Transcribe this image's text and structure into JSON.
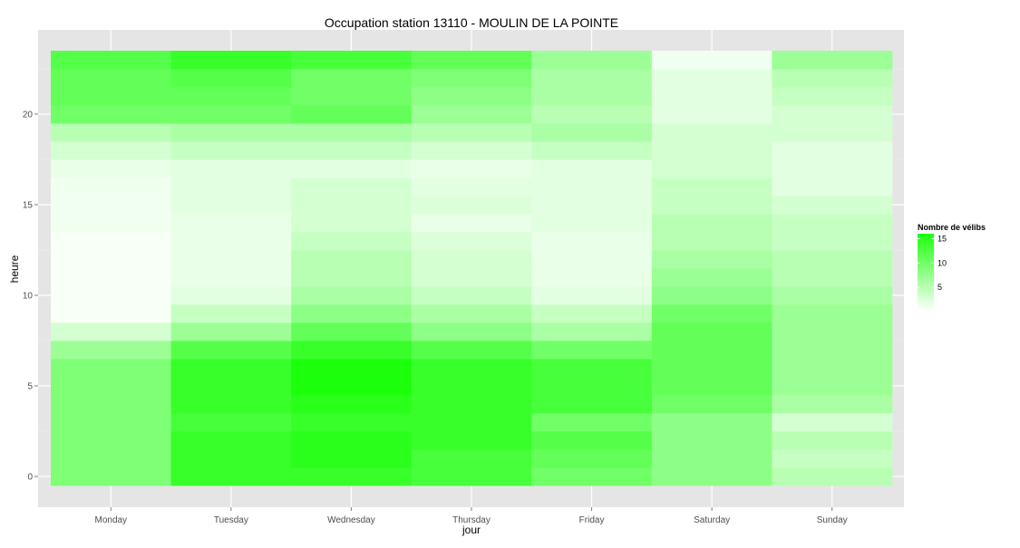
{
  "chart_data": {
    "type": "heatmap",
    "title": "Occupation station 13110 - MOULIN DE LA POINTE",
    "xlabel": "jour",
    "ylabel": "heure",
    "categories": [
      "Monday",
      "Tuesday",
      "Wednesday",
      "Thursday",
      "Friday",
      "Saturday",
      "Sunday"
    ],
    "hours": [
      0,
      1,
      2,
      3,
      4,
      5,
      6,
      7,
      8,
      9,
      10,
      11,
      12,
      13,
      14,
      15,
      16,
      17,
      18,
      19,
      20,
      21,
      22,
      23
    ],
    "y_ticks": [
      0,
      5,
      10,
      15,
      20
    ],
    "ylim": [
      -0.5,
      23.5
    ],
    "grid": true,
    "legend": {
      "title": "Nombre de vélibs",
      "placement": "right",
      "ticks": [
        5,
        10,
        15
      ],
      "range": [
        0,
        16
      ],
      "color_low": "#ffffff",
      "color_high": "#1cff0c"
    },
    "panel_color": "#e5e5e5",
    "values": [
      [
        9,
        14,
        14,
        13,
        10,
        8,
        5
      ],
      [
        9,
        14,
        15,
        13,
        11,
        8,
        4
      ],
      [
        9,
        14,
        15,
        14,
        12,
        8,
        5
      ],
      [
        9,
        13,
        14,
        14,
        10,
        8,
        3
      ],
      [
        9,
        14,
        15,
        14,
        13,
        10,
        6
      ],
      [
        9,
        14,
        16,
        14,
        13,
        11,
        7
      ],
      [
        9,
        14,
        16,
        14,
        13,
        11,
        7
      ],
      [
        7,
        12,
        14,
        12,
        10,
        11,
        7
      ],
      [
        3,
        7,
        11,
        8,
        6,
        11,
        7
      ],
      [
        0.5,
        4,
        8,
        6,
        4,
        10,
        7
      ],
      [
        0.5,
        2,
        6,
        4,
        2,
        8,
        6
      ],
      [
        0.5,
        1.5,
        5,
        3,
        1.5,
        7,
        5
      ],
      [
        0.5,
        1.5,
        5,
        3,
        1.5,
        6,
        5
      ],
      [
        0.5,
        1.5,
        4,
        2.5,
        1.5,
        5,
        4
      ],
      [
        1,
        1.5,
        3,
        1.5,
        2,
        5,
        4
      ],
      [
        1,
        2,
        3,
        2.5,
        2,
        4,
        3
      ],
      [
        1,
        2,
        3,
        2,
        2,
        4,
        2
      ],
      [
        1.5,
        2,
        2,
        1.5,
        2,
        3,
        2
      ],
      [
        3,
        4,
        4,
        3,
        4,
        3,
        2
      ],
      [
        5,
        6,
        6,
        5,
        6,
        3,
        3
      ],
      [
        10,
        10,
        11,
        7,
        5,
        2,
        3
      ],
      [
        11,
        11,
        10,
        8,
        6,
        2,
        4
      ],
      [
        11,
        12,
        10,
        9,
        6,
        2,
        5
      ],
      [
        12,
        14,
        13,
        11,
        7,
        1,
        7
      ]
    ]
  }
}
